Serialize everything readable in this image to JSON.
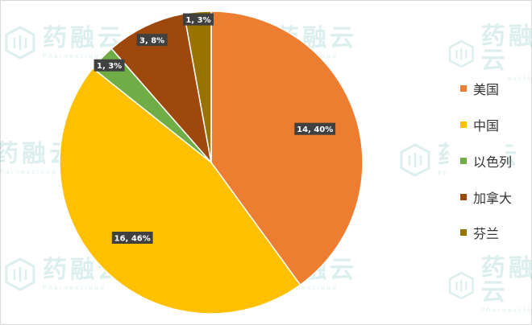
{
  "chart_data": {
    "type": "pie",
    "slices": [
      {
        "name": "美国",
        "value": 14,
        "percent": "40%",
        "color": "#ed7d31"
      },
      {
        "name": "中国",
        "value": 16,
        "percent": "46%",
        "color": "#ffc000"
      },
      {
        "name": "以色列",
        "value": 1,
        "percent": "3%",
        "color": "#70ad47"
      },
      {
        "name": "加拿大",
        "value": 3,
        "percent": "8%",
        "color": "#9e480e"
      },
      {
        "name": "芬兰",
        "value": 1,
        "percent": "3%",
        "color": "#997300"
      }
    ],
    "data_labels": [
      "14, 40%",
      "16, 46%",
      "1, 3%",
      "3, 8%",
      "1, 3%"
    ],
    "legend_position": "right"
  },
  "watermark": {
    "brand": "药融云",
    "subtitle": "Pharnexcloud"
  }
}
